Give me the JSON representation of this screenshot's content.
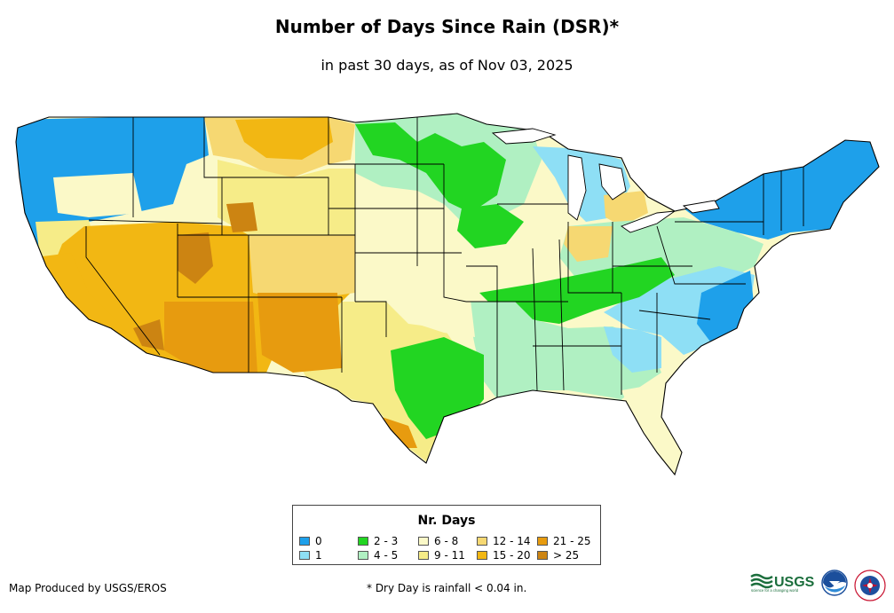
{
  "title": "Number of Days Since Rain (DSR)*",
  "subtitle": "in past 30 days, as of Nov 03, 2025",
  "legend": {
    "title": "Nr. Days",
    "items": [
      {
        "label": "0",
        "color": "#1ea0ea"
      },
      {
        "label": "1",
        "color": "#8edff5"
      },
      {
        "label": "2 - 3",
        "color": "#22d522"
      },
      {
        "label": "4 - 5",
        "color": "#b0f0c2"
      },
      {
        "label": "6 - 8",
        "color": "#fbf9c8"
      },
      {
        "label": "9 - 11",
        "color": "#f6ec88"
      },
      {
        "label": "12 - 14",
        "color": "#f6d872"
      },
      {
        "label": "15 - 20",
        "color": "#f2b713"
      },
      {
        "label": "21 - 25",
        "color": "#e79b0f"
      },
      {
        "label": "> 25",
        "color": "#cc8412"
      }
    ]
  },
  "footer": {
    "credit": "Map Produced by USGS/EROS",
    "note": "* Dry Day is rainfall < 0.04 in."
  },
  "logos": {
    "usgs": "USGS",
    "usgs_tagline": "science for a changing world",
    "noaa": "NOAA",
    "nws": "NATIONAL WEATHER SERVICE"
  },
  "colors": {
    "water": "#ffffff",
    "border": "#000000"
  }
}
